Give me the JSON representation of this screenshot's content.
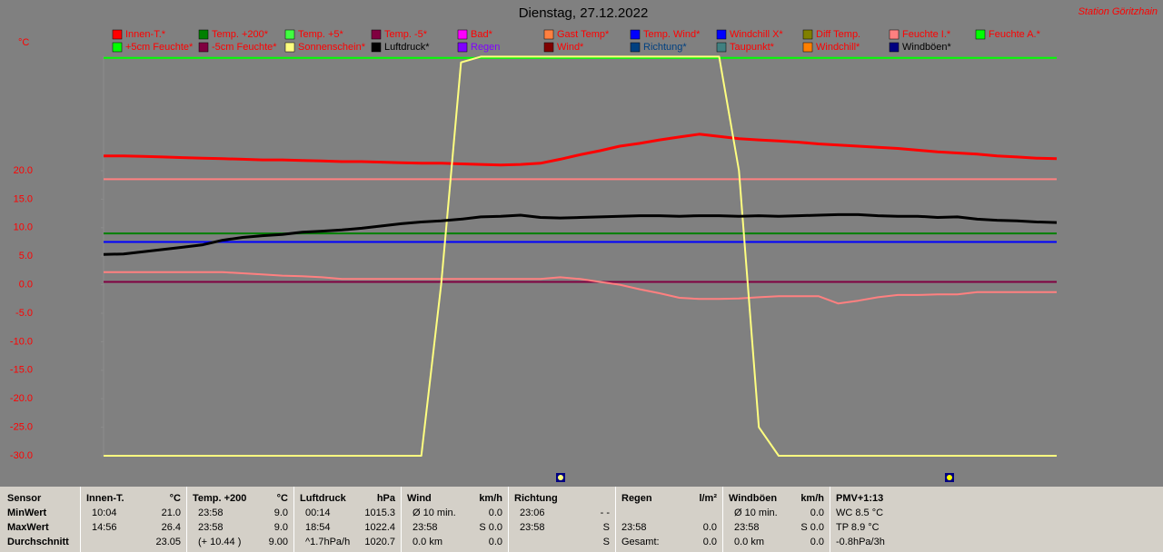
{
  "station": "Station Göritzhain",
  "chart_data": {
    "type": "line",
    "title": "Dienstag, 27.12.2022",
    "y_label": "°C",
    "ylim": [
      -30,
      40
    ],
    "yticks": [
      {
        "value": 20,
        "label": "20.0"
      },
      {
        "value": 15,
        "label": "15.0"
      },
      {
        "value": 10,
        "label": "10.0"
      },
      {
        "value": 5,
        "label": "5.0"
      },
      {
        "value": 0,
        "label": "0.0"
      },
      {
        "value": -5,
        "label": "-5.0"
      },
      {
        "value": -10,
        "label": "-10.0"
      },
      {
        "value": -15,
        "label": "-15.0"
      },
      {
        "value": -20,
        "label": "-20.0"
      },
      {
        "value": -25,
        "label": "-25.0"
      },
      {
        "value": -30,
        "label": "-30.0"
      }
    ],
    "categories": [
      null,
      null,
      null,
      null,
      null,
      null,
      null,
      null,
      null,
      null,
      null,
      null,
      null,
      null,
      null,
      null,
      null,
      null,
      null,
      null,
      null,
      null,
      null,
      null,
      null,
      null,
      null,
      null,
      null,
      null,
      null,
      null,
      null,
      null,
      null,
      null,
      null,
      null,
      null,
      null,
      null,
      null,
      null,
      null,
      null,
      null,
      null,
      null,
      null
    ],
    "series": [
      {
        "name": "Innen-T.*",
        "color": "#ff0000",
        "values": [
          22.6,
          22.6,
          22.5,
          22.4,
          22.3,
          22.2,
          22.1,
          22.0,
          21.9,
          21.9,
          21.8,
          21.7,
          21.6,
          21.6,
          21.5,
          21.4,
          21.3,
          21.3,
          21.2,
          21.1,
          21.0,
          21.1,
          21.3,
          22.0,
          22.8,
          23.5,
          24.3,
          24.8,
          25.4,
          25.9,
          26.4,
          26.0,
          25.6,
          25.4,
          25.2,
          25.0,
          24.7,
          24.5,
          24.3,
          24.1,
          23.9,
          23.6,
          23.3,
          23.1,
          22.9,
          22.6,
          22.4,
          22.2,
          22.1
        ]
      },
      {
        "name": "Temp. +200*",
        "color": "#008000",
        "values": [
          9,
          9,
          9,
          9,
          9,
          9,
          9,
          9,
          9,
          9,
          9,
          9,
          9,
          9,
          9,
          9,
          9,
          9,
          9,
          9,
          9,
          9,
          9,
          9,
          9,
          9,
          9,
          9,
          9,
          9,
          9,
          9,
          9,
          9,
          9,
          9,
          9,
          9,
          9,
          9,
          9,
          9,
          9,
          9,
          9,
          9,
          9,
          9,
          9
        ]
      },
      {
        "name": "Temp. +5*",
        "color": "#40ff40"
      },
      {
        "name": "Temp. -5*",
        "color": "#800040",
        "values": [
          0.5,
          0.5,
          0.5,
          0.5,
          0.5,
          0.5,
          0.5,
          0.5,
          0.5,
          0.5,
          0.5,
          0.5,
          0.5,
          0.5,
          0.5,
          0.5,
          0.5,
          0.5,
          0.5,
          0.5,
          0.5,
          0.5,
          0.5,
          0.5,
          0.5,
          0.5,
          0.5,
          0.5,
          0.5,
          0.5,
          0.5,
          0.5,
          0.5,
          0.5,
          0.5,
          0.5,
          0.5,
          0.5,
          0.5,
          0.5,
          0.5,
          0.5,
          0.5,
          0.5,
          0.5,
          0.5,
          0.5,
          0.5,
          0.5
        ]
      },
      {
        "name": "Bad*",
        "color": "#ff00ff"
      },
      {
        "name": "Gast Temp*",
        "color": "#ff8040",
        "line_color": "#ff8080",
        "values": [
          2.2,
          2.2,
          2.2,
          2.2,
          2.2,
          2.2,
          2.2,
          2.0,
          1.8,
          1.6,
          1.5,
          1.3,
          1.0,
          1.0,
          1.0,
          1.0,
          1.0,
          1.0,
          1.0,
          1.0,
          1.0,
          1.0,
          1.0,
          1.3,
          1.0,
          0.5,
          0.0,
          -0.8,
          -1.5,
          -2.3,
          -2.5,
          -2.5,
          -2.4,
          -2.2,
          -2.0,
          -2.0,
          -2.0,
          -3.3,
          -2.8,
          -2.2,
          -1.8,
          -1.8,
          -1.7,
          -1.7,
          -1.3,
          -1.3,
          -1.3,
          -1.3,
          -1.3
        ]
      },
      {
        "name": "Temp. Wind*",
        "color": "#0000ff"
      },
      {
        "name": "Windchill X*",
        "color": "#0000ff",
        "values": [
          7.5,
          7.5,
          7.5,
          7.5,
          7.5,
          7.5,
          7.5,
          7.5,
          7.5,
          7.5,
          7.5,
          7.5,
          7.5,
          7.5,
          7.5,
          7.5,
          7.5,
          7.5,
          7.5,
          7.5,
          7.5,
          7.5,
          7.5,
          7.5,
          7.5,
          7.5,
          7.5,
          7.5,
          7.5,
          7.5,
          7.5,
          7.5,
          7.5,
          7.5,
          7.5,
          7.5,
          7.5,
          7.5,
          7.5,
          7.5,
          7.5,
          7.5,
          7.5,
          7.5,
          7.5,
          7.5,
          7.5,
          7.5,
          7.5
        ]
      },
      {
        "name": "Diff Temp.",
        "color": "#808000"
      },
      {
        "name": "Feuchte I.*",
        "color": "#ff8080",
        "values": [
          18.5,
          18.5,
          18.5,
          18.5,
          18.5,
          18.5,
          18.5,
          18.5,
          18.5,
          18.5,
          18.5,
          18.5,
          18.5,
          18.5,
          18.5,
          18.5,
          18.5,
          18.5,
          18.5,
          18.5,
          18.5,
          18.5,
          18.5,
          18.5,
          18.5,
          18.5,
          18.5,
          18.5,
          18.5,
          18.5,
          18.5,
          18.5,
          18.5,
          18.5,
          18.5,
          18.5,
          18.5,
          18.5,
          18.5,
          18.5,
          18.5,
          18.5,
          18.5,
          18.5,
          18.5,
          18.5,
          18.5,
          18.5,
          18.5
        ]
      },
      {
        "name": "Feuchte A.*",
        "color": "#00ff00",
        "values": [
          39.8,
          39.8,
          39.8,
          39.8,
          39.8,
          39.8,
          39.8,
          39.8,
          39.8,
          39.8,
          39.8,
          39.8,
          39.8,
          39.8,
          39.8,
          39.8,
          39.8,
          39.8,
          39.8,
          39.8,
          39.8,
          39.8,
          39.8,
          39.8,
          39.8,
          39.8,
          39.8,
          39.8,
          39.8,
          39.8,
          39.8,
          39.8,
          39.8,
          39.8,
          39.8,
          39.8,
          39.8,
          39.8,
          39.8,
          39.8,
          39.8,
          39.8,
          39.8,
          39.8,
          39.8,
          39.8,
          39.8,
          39.8,
          39.8
        ]
      },
      {
        "name": "+5cm Feuchte*",
        "color": "#00ff00"
      },
      {
        "name": "-5cm Feuchte*",
        "color": "#800040"
      },
      {
        "name": "Sonnenschein*",
        "color": "#ffff80",
        "values": [
          -30,
          -30,
          -30,
          -30,
          -30,
          -30,
          -30,
          -30,
          -30,
          -30,
          -30,
          -30,
          -30,
          -30,
          -30,
          -30,
          -30,
          0,
          39,
          40,
          40,
          40,
          40,
          40,
          40,
          40,
          40,
          40,
          40,
          40,
          40,
          40,
          20,
          -25,
          -30,
          -30,
          -30,
          -30,
          -30,
          -30,
          -30,
          -30,
          -30,
          -30,
          -30,
          -30,
          -30,
          -30,
          -30
        ]
      },
      {
        "name": "Luftdruck*",
        "color": "#000000",
        "label_color": "#000000",
        "values": [
          5.3,
          5.4,
          5.8,
          6.2,
          6.6,
          7.0,
          7.8,
          8.3,
          8.6,
          8.8,
          9.2,
          9.4,
          9.6,
          9.9,
          10.3,
          10.7,
          11.0,
          11.2,
          11.5,
          11.9,
          12.0,
          12.2,
          11.8,
          11.7,
          11.8,
          11.9,
          12.0,
          12.1,
          12.1,
          12.0,
          12.1,
          12.1,
          12.0,
          12.1,
          12.0,
          12.1,
          12.2,
          12.3,
          12.3,
          12.1,
          12.0,
          12.0,
          11.8,
          11.9,
          11.5,
          11.3,
          11.2,
          11.0,
          10.9
        ]
      },
      {
        "name": "Regen",
        "color": "#8000ff",
        "label_color": "#8000ff"
      },
      {
        "name": "Wind*",
        "color": "#800000"
      },
      {
        "name": "Richtung*",
        "color": "#004080",
        "label_color": "#004080"
      },
      {
        "name": "Taupunkt*",
        "color": "#408080"
      },
      {
        "name": "Windchill*",
        "color": "#ff8000"
      },
      {
        "name": "Windböen*",
        "color": "#000080",
        "label_color": "#000000"
      }
    ]
  },
  "table": {
    "row_labels": [
      "Sensor",
      "MinWert",
      "MaxWert",
      "Durchschnitt"
    ],
    "columns": [
      {
        "title": "Innen-T.",
        "unit": "°C",
        "rows": [
          [
            "10:04",
            "21.0"
          ],
          [
            "14:56",
            "26.4"
          ],
          [
            null,
            "23.05"
          ]
        ]
      },
      {
        "title": "Temp. +200",
        "unit": "°C",
        "rows": [
          [
            "23:58",
            "9.0"
          ],
          [
            "23:58",
            "9.0"
          ],
          [
            "(+ 10.44 )",
            "9.00"
          ]
        ]
      },
      {
        "title": "Luftdruck",
        "unit": "hPa",
        "rows": [
          [
            "00:14",
            "1015.3"
          ],
          [
            "18:54",
            "1022.4"
          ],
          [
            "^1.7hPa/h",
            "1020.7"
          ]
        ]
      },
      {
        "title": "Wind",
        "unit": "km/h",
        "rows": [
          [
            "Ø 10 min.",
            "0.0"
          ],
          [
            "23:58",
            "S 0.0"
          ],
          [
            "0.0 km",
            "0.0"
          ]
        ]
      },
      {
        "title": "Richtung",
        "rows": [
          [
            "23:06",
            "- -"
          ],
          [
            "23:58",
            "S"
          ],
          [
            null,
            "S"
          ]
        ]
      },
      {
        "title": "Regen",
        "unit": "l/m²",
        "rows": [
          [
            null,
            null
          ],
          [
            "23:58",
            "0.0"
          ],
          [
            "Gesamt:",
            "0.0"
          ]
        ]
      },
      {
        "title": "Windböen",
        "unit": "km/h",
        "rows": [
          [
            "Ø 10 min.",
            "0.0"
          ],
          [
            "23:58",
            "S 0.0"
          ],
          [
            "0.0 km",
            "0.0"
          ]
        ]
      },
      {
        "title": "PMV+1:13",
        "rows": [
          [
            "WC 8.5 °C"
          ],
          [
            "TP 8.9 °C"
          ],
          [
            "-0.8hPa/3h"
          ]
        ]
      }
    ]
  }
}
